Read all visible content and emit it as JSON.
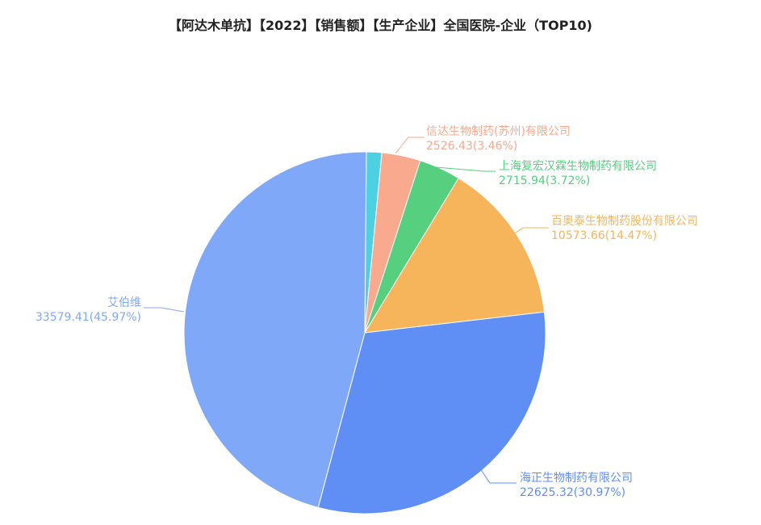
{
  "title": "【阿达木单抗】【2022】【销售额】【生产企业】全国医院-企业（TOP10)",
  "chart_data": {
    "type": "pie",
    "title": "【阿达木单抗】【2022】【销售额】【生产企业】全国医院-企业（TOP10)",
    "slices": [
      {
        "name": "信达生物制药(苏州)有限公司",
        "value": 2526.43,
        "percent": "3.46%",
        "color": "#f9a98e",
        "label": "信达生物制药(苏州)有限公司",
        "value_label": "2526.43(3.46%)"
      },
      {
        "name": "上海复宏汉霖生物制药有限公司",
        "value": 2715.94,
        "percent": "3.72%",
        "color": "#56cf7f",
        "label": "上海复宏汉霖生物制药有限公司",
        "value_label": "2715.94(3.72%)"
      },
      {
        "name": "百奥泰生物制药股份有限公司",
        "value": 10573.66,
        "percent": "14.47%",
        "color": "#f6b55a",
        "label": "百奥泰生物制药股份有限公司",
        "value_label": "10573.66(14.47%)"
      },
      {
        "name": "海正生物制药有限公司",
        "value": 22625.32,
        "percent": "30.97%",
        "color": "#5f8ff5",
        "label": "海正生物制药有限公司",
        "value_label": "22625.32(30.97%)"
      },
      {
        "name": "艾伯维",
        "value": 33579.41,
        "percent": "45.97%",
        "color": "#80a8f8",
        "label": "艾伯维",
        "value_label": "33579.41(45.97%)"
      },
      {
        "name": "",
        "value": 1000,
        "percent": "",
        "color": "#4dd0e1",
        "label": "",
        "value_label": ""
      }
    ]
  }
}
